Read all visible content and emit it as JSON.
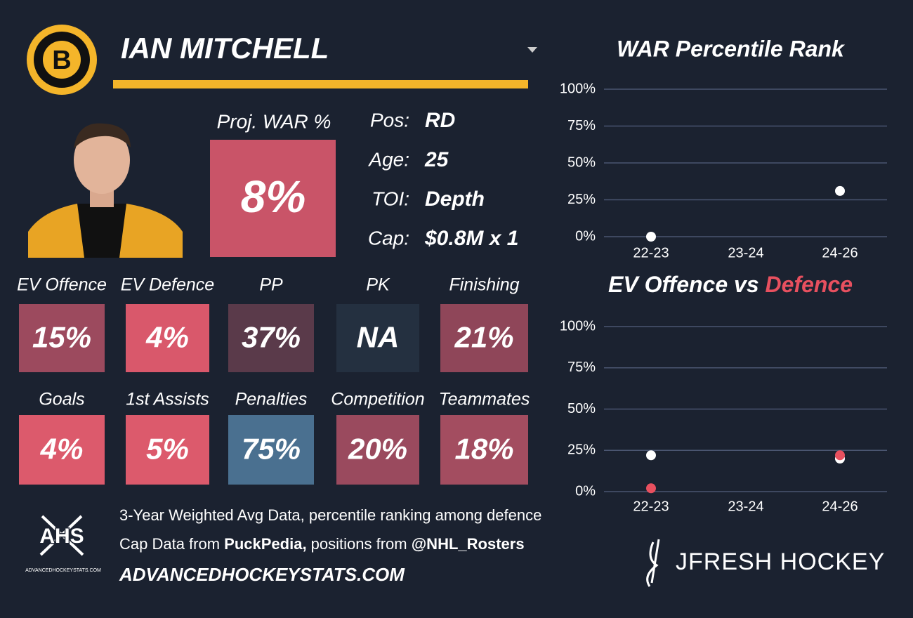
{
  "header": {
    "player": "IAN MITCHELL",
    "logo_letter": "B"
  },
  "projection": {
    "label": "Proj. WAR %",
    "value": "8%",
    "color": "#c95468"
  },
  "info": [
    {
      "label": "Pos:",
      "value": "RD"
    },
    {
      "label": "Age:",
      "value": "25"
    },
    {
      "label": "TOI:",
      "value": "Depth"
    },
    {
      "label": "Cap:",
      "value": "$0.8M x 1"
    }
  ],
  "tiles": [
    {
      "label": "EV Offence",
      "value": "15%",
      "color": "#9c4a5e"
    },
    {
      "label": "EV Defence",
      "value": "4%",
      "color": "#d9586b"
    },
    {
      "label": "PP",
      "value": "37%",
      "color": "#5a3a4a"
    },
    {
      "label": "PK",
      "value": "NA",
      "color": "#243040"
    },
    {
      "label": "Finishing",
      "value": "21%",
      "color": "#8f4659"
    },
    {
      "label": "Goals",
      "value": "4%",
      "color": "#dc5a6c"
    },
    {
      "label": "1st Assists",
      "value": "5%",
      "color": "#dc5a6c"
    },
    {
      "label": "Penalties",
      "value": "75%",
      "color": "#4a7090"
    },
    {
      "label": "Competition",
      "value": "20%",
      "color": "#9a4a5e"
    },
    {
      "label": "Teammates",
      "value": "18%",
      "color": "#a34d60"
    }
  ],
  "footer": {
    "logo": "AHS",
    "logo_caption": "ADVANCEDHOCKEYSTATS.COM",
    "line1": "3-Year Weighted Avg Data, percentile ranking among defence",
    "line2": [
      "Cap Data from ",
      "PuckPedia,",
      " positions from ",
      "@NHL_Rosters"
    ],
    "site": "ADVANCEDHOCKEYSTATS.COM",
    "brand": "JFRESH HOCKEY"
  },
  "chart_data": [
    {
      "type": "scatter",
      "title": "WAR Percentile Rank",
      "categories": [
        "22-23",
        "23-24",
        "24-26"
      ],
      "series": [
        {
          "color": "#ffffff",
          "values": [
            0,
            null,
            31
          ]
        }
      ],
      "ylim": [
        0,
        100
      ],
      "yticks": [
        {
          "value": 0,
          "label": "0%"
        },
        {
          "value": 25,
          "label": "25%"
        },
        {
          "value": 50,
          "label": "50%"
        },
        {
          "value": 75,
          "label": "75%"
        },
        {
          "value": 100,
          "label": "100%"
        }
      ],
      "grid": true
    },
    {
      "type": "scatter",
      "title_joiner": "vs",
      "categories": [
        "22-23",
        "23-24",
        "24-26"
      ],
      "series": [
        {
          "name": "EV Offence",
          "color": "#ffffff",
          "values": [
            22,
            null,
            20
          ]
        },
        {
          "name": "Defence",
          "color": "#e8505f",
          "values": [
            2,
            null,
            22
          ]
        }
      ],
      "ylim": [
        0,
        100
      ],
      "yticks": [
        {
          "value": 0,
          "label": "0%"
        },
        {
          "value": 25,
          "label": "25%"
        },
        {
          "value": 50,
          "label": "50%"
        },
        {
          "value": 75,
          "label": "75%"
        },
        {
          "value": 100,
          "label": "100%"
        }
      ],
      "grid": true
    }
  ]
}
